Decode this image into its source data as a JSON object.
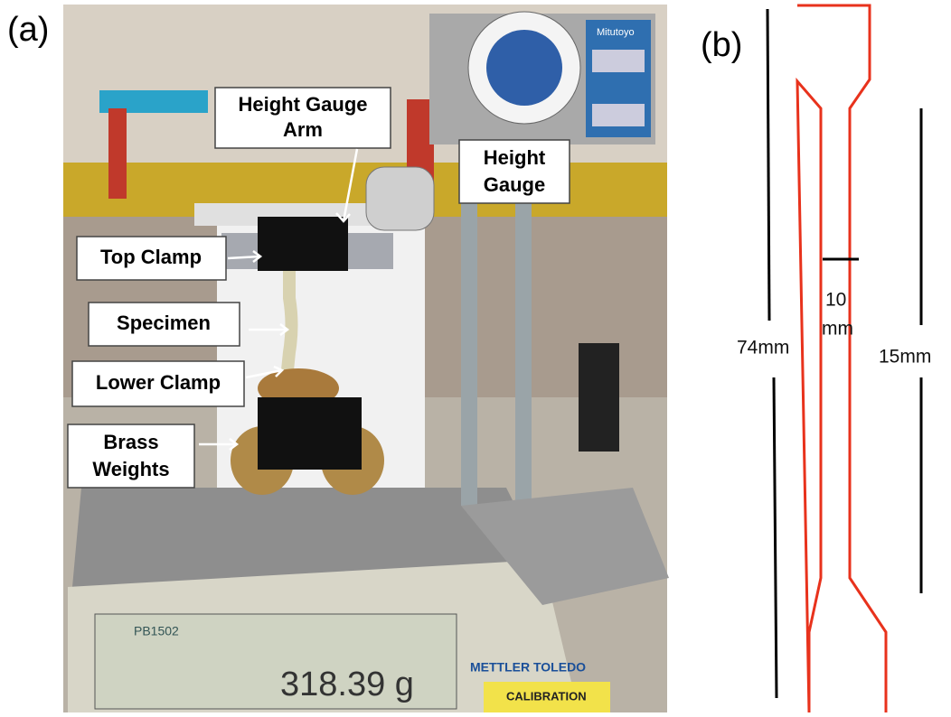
{
  "panel_a": {
    "label": "(a)",
    "annotations": [
      {
        "lines": [
          "Height Gauge",
          "Arm"
        ]
      },
      {
        "lines": [
          "Height",
          "Gauge"
        ]
      },
      {
        "lines": [
          "Top Clamp"
        ]
      },
      {
        "lines": [
          "Specimen"
        ]
      },
      {
        "lines": [
          "Lower Clamp"
        ]
      },
      {
        "lines": [
          "Brass",
          "Weights"
        ]
      }
    ],
    "photo_text": [
      "PB1502",
      "318.39 g",
      "METTLER TOLEDO",
      "Mitutoyo",
      "CALIBRATION"
    ]
  },
  "panel_b": {
    "label": "(b)",
    "overall_length": "74mm",
    "gauge_length": "15mm",
    "width": [
      "10",
      "mm"
    ]
  }
}
